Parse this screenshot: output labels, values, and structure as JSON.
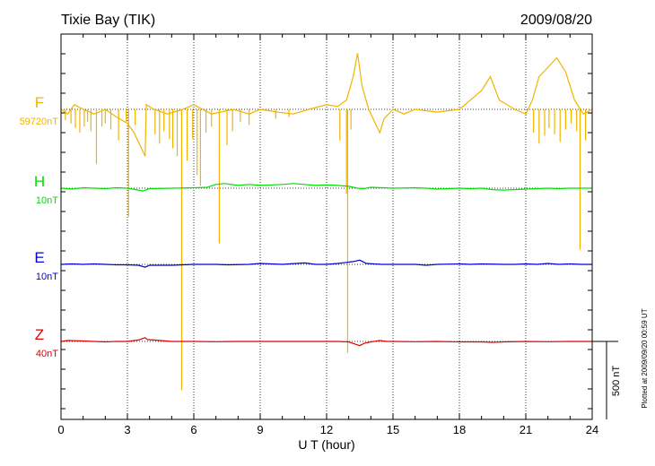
{
  "chart_data": {
    "type": "line",
    "title": "Tixie Bay (TIK)",
    "date": "2009/08/20",
    "xlabel": "U T (hour)",
    "xlim": [
      0,
      24
    ],
    "x_ticks": [
      "0",
      "3",
      "6",
      "9",
      "12",
      "15",
      "18",
      "21",
      "24"
    ],
    "grid": true,
    "scale_bar": "500 nT",
    "footnote": "Plotted at 2009/09/20 00:59 UT",
    "series": [
      {
        "name": "F",
        "baseline_label": "59720nT",
        "color": "#f0b400",
        "points": [
          [
            0,
            0
          ],
          [
            0.3,
            -5
          ],
          [
            0.6,
            5
          ],
          [
            1,
            0
          ],
          [
            1.5,
            -5
          ],
          [
            2,
            0
          ],
          [
            2.5,
            -8
          ],
          [
            3,
            -15
          ],
          [
            3.3,
            -25
          ],
          [
            3.6,
            -40
          ],
          [
            3.8,
            -50
          ],
          [
            3.85,
            5
          ],
          [
            4.2,
            0
          ],
          [
            4.8,
            -5
          ],
          [
            5.5,
            0
          ],
          [
            6,
            5
          ],
          [
            6.8,
            -5
          ],
          [
            7.2,
            -3
          ],
          [
            7.8,
            0
          ],
          [
            8.5,
            -5
          ],
          [
            9,
            0
          ],
          [
            9.8,
            -3
          ],
          [
            10.5,
            -5
          ],
          [
            11.2,
            0
          ],
          [
            12,
            5
          ],
          [
            12.5,
            3
          ],
          [
            12.9,
            10
          ],
          [
            13.2,
            35
          ],
          [
            13.4,
            60
          ],
          [
            13.6,
            25
          ],
          [
            13.9,
            0
          ],
          [
            14.2,
            -15
          ],
          [
            14.4,
            -25
          ],
          [
            14.6,
            -10
          ],
          [
            15,
            0
          ],
          [
            15.5,
            -5
          ],
          [
            16,
            0
          ],
          [
            17,
            -3
          ],
          [
            18,
            0
          ],
          [
            18.5,
            10
          ],
          [
            19,
            20
          ],
          [
            19.4,
            35
          ],
          [
            19.8,
            10
          ],
          [
            20.5,
            0
          ],
          [
            21,
            -5
          ],
          [
            21.3,
            10
          ],
          [
            21.6,
            35
          ],
          [
            22,
            45
          ],
          [
            22.4,
            55
          ],
          [
            22.8,
            40
          ],
          [
            23.2,
            10
          ],
          [
            23.6,
            -5
          ],
          [
            24,
            0
          ]
        ],
        "spikes": [
          [
            0.2,
            70
          ],
          [
            0.45,
            90
          ],
          [
            0.65,
            120
          ],
          [
            0.85,
            150
          ],
          [
            1.05,
            110
          ],
          [
            1.2,
            80
          ],
          [
            1.35,
            140
          ],
          [
            1.6,
            350
          ],
          [
            1.85,
            110
          ],
          [
            2,
            90
          ],
          [
            2.25,
            130
          ],
          [
            2.6,
            200
          ],
          [
            2.95,
            80
          ],
          [
            3.05,
            690
          ],
          [
            3.35,
            100
          ],
          [
            4.25,
            160
          ],
          [
            4.45,
            220
          ],
          [
            4.65,
            140
          ],
          [
            4.9,
            190
          ],
          [
            5.05,
            250
          ],
          [
            5.25,
            300
          ],
          [
            5.45,
            1800
          ],
          [
            5.7,
            330
          ],
          [
            5.95,
            190
          ],
          [
            6.15,
            420
          ],
          [
            6.3,
            490
          ],
          [
            6.55,
            150
          ],
          [
            6.8,
            110
          ],
          [
            7.15,
            860
          ],
          [
            7.5,
            230
          ],
          [
            7.75,
            140
          ],
          [
            8.1,
            80
          ],
          [
            8.5,
            100
          ],
          [
            9.7,
            60
          ],
          [
            10.3,
            50
          ],
          [
            12.6,
            200
          ],
          [
            12.9,
            540
          ],
          [
            12.95,
            1560
          ],
          [
            13.1,
            130
          ],
          [
            21.35,
            150
          ],
          [
            21.6,
            220
          ],
          [
            21.85,
            170
          ],
          [
            22.05,
            120
          ],
          [
            22.3,
            160
          ],
          [
            22.55,
            210
          ],
          [
            22.8,
            130
          ],
          [
            23.05,
            90
          ],
          [
            23.3,
            140
          ],
          [
            23.45,
            900
          ],
          [
            23.7,
            200
          ]
        ]
      },
      {
        "name": "H",
        "baseline_label": "10nT",
        "color": "#00e000",
        "points": [
          [
            0,
            0
          ],
          [
            0.5,
            -1
          ],
          [
            1,
            0.5
          ],
          [
            1.5,
            0
          ],
          [
            2,
            -0.5
          ],
          [
            2.5,
            0.5
          ],
          [
            3,
            0
          ],
          [
            3.5,
            -2
          ],
          [
            3.7,
            -3
          ],
          [
            4,
            -0.5
          ],
          [
            5,
            0
          ],
          [
            6,
            0.5
          ],
          [
            6.6,
            1
          ],
          [
            7,
            4
          ],
          [
            7.4,
            5
          ],
          [
            8,
            3
          ],
          [
            8.5,
            4
          ],
          [
            9,
            3
          ],
          [
            9.5,
            3.5
          ],
          [
            10,
            4
          ],
          [
            10.5,
            5
          ],
          [
            11,
            4
          ],
          [
            11.5,
            3
          ],
          [
            12,
            3.5
          ],
          [
            12.5,
            3
          ],
          [
            13,
            2
          ],
          [
            13.4,
            0
          ],
          [
            13.7,
            -0.5
          ],
          [
            14,
            1
          ],
          [
            15,
            0
          ],
          [
            16,
            0.5
          ],
          [
            16.5,
            0
          ],
          [
            17,
            -1
          ],
          [
            18,
            0
          ],
          [
            18.5,
            -0.5
          ],
          [
            19,
            0
          ],
          [
            19.5,
            -1.5
          ],
          [
            20,
            -2
          ],
          [
            21,
            -1
          ],
          [
            22,
            0
          ],
          [
            22.5,
            -0.5
          ],
          [
            23,
            0
          ],
          [
            24,
            0
          ]
        ]
      },
      {
        "name": "E",
        "baseline_label": "10nT",
        "color": "#0000d0",
        "points": [
          [
            0,
            0
          ],
          [
            0.5,
            0.5
          ],
          [
            1,
            0
          ],
          [
            1.5,
            0.5
          ],
          [
            2,
            0
          ],
          [
            2.5,
            -0.5
          ],
          [
            3,
            -0.5
          ],
          [
            3.5,
            -1
          ],
          [
            3.8,
            -3
          ],
          [
            4,
            -1
          ],
          [
            5,
            -1
          ],
          [
            6,
            0
          ],
          [
            7,
            0
          ],
          [
            7.5,
            -0.5
          ],
          [
            8.5,
            0
          ],
          [
            9,
            1
          ],
          [
            10,
            0
          ],
          [
            11,
            1.5
          ],
          [
            11.5,
            0
          ],
          [
            12,
            0
          ],
          [
            12.5,
            1
          ],
          [
            13.2,
            3
          ],
          [
            13.5,
            4.5
          ],
          [
            13.8,
            1
          ],
          [
            14.5,
            0
          ],
          [
            15,
            0
          ],
          [
            16,
            0
          ],
          [
            16.5,
            -1
          ],
          [
            17,
            0
          ],
          [
            18,
            0.5
          ],
          [
            18.5,
            0
          ],
          [
            19,
            0.5
          ],
          [
            20,
            0
          ],
          [
            20.5,
            0
          ],
          [
            21,
            0.5
          ],
          [
            21.5,
            0
          ],
          [
            22,
            1
          ],
          [
            22.5,
            0
          ],
          [
            23,
            0.5
          ],
          [
            23.5,
            0
          ],
          [
            24,
            0
          ]
        ]
      },
      {
        "name": "Z",
        "baseline_label": "40nT",
        "color": "#e00000",
        "points": [
          [
            0,
            0
          ],
          [
            0.3,
            1
          ],
          [
            1,
            0.5
          ],
          [
            1.5,
            0
          ],
          [
            2,
            -0.5
          ],
          [
            2.5,
            0
          ],
          [
            3,
            0
          ],
          [
            3.5,
            1.5
          ],
          [
            3.8,
            4
          ],
          [
            3.9,
            2
          ],
          [
            4.5,
            1
          ],
          [
            5,
            0
          ],
          [
            6,
            0
          ],
          [
            7,
            -0.3
          ],
          [
            8,
            0
          ],
          [
            9,
            0
          ],
          [
            10,
            0
          ],
          [
            11,
            0
          ],
          [
            12,
            0
          ],
          [
            12.5,
            0
          ],
          [
            13,
            -0.5
          ],
          [
            13.3,
            -3
          ],
          [
            13.5,
            -4.5
          ],
          [
            13.7,
            -2
          ],
          [
            14,
            -0.5
          ],
          [
            14.4,
            1
          ],
          [
            14.7,
            0
          ],
          [
            15,
            0
          ],
          [
            16,
            -0.3
          ],
          [
            17,
            0
          ],
          [
            18,
            -0.5
          ],
          [
            19,
            -0.5
          ],
          [
            19.5,
            -1
          ],
          [
            20,
            -0.5
          ],
          [
            21,
            0
          ],
          [
            22,
            -0.3
          ],
          [
            23,
            0
          ],
          [
            24,
            0
          ]
        ]
      }
    ]
  }
}
